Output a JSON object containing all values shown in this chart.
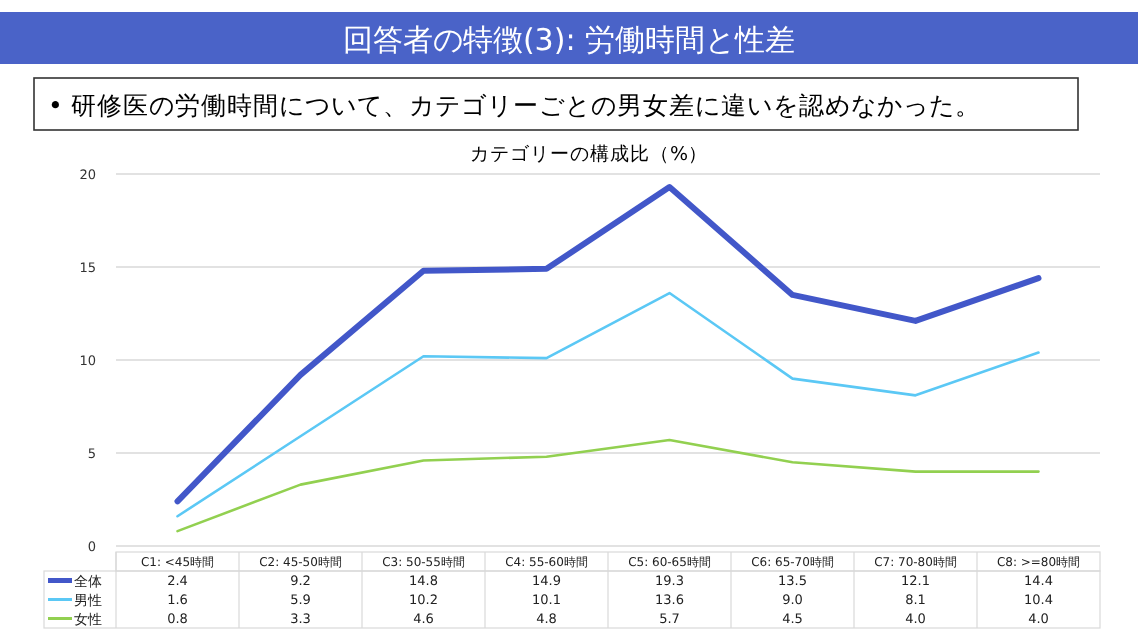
{
  "chart_data": {
    "type": "line",
    "title": "回答者の特徴(3): 労働時間と性差",
    "subtitle": "• 研修医の労働時間について、カテゴリーごとの男女差に違いを認めなかった。",
    "annotations": [
      "カテゴリーの構成比（%）"
    ],
    "categories": [
      "C1: <45時間",
      "C2: 45-50時間",
      "C3: 50-55時間",
      "C4: 55-60時間",
      "C5: 60-65時間",
      "C6: 65-70時間",
      "C7: 70-80時間",
      "C8: >=80時間"
    ],
    "series": [
      {
        "name": "全体",
        "color": "#4257c9",
        "values": [
          2.4,
          9.2,
          14.8,
          14.9,
          19.3,
          13.5,
          12.1,
          14.4
        ],
        "value_labels": [
          "2.4",
          "9.2",
          "14.8",
          "14.9",
          "19.3",
          "13.5",
          "12.1",
          "14.4"
        ]
      },
      {
        "name": "男性",
        "color": "#5bc8f5",
        "values": [
          1.6,
          5.9,
          10.2,
          10.1,
          13.6,
          9.0,
          8.1,
          10.4
        ],
        "value_labels": [
          "1.6",
          "5.9",
          "10.2",
          "10.1",
          "13.6",
          "9.0",
          "8.1",
          "10.4"
        ]
      },
      {
        "name": "女性",
        "color": "#92d050",
        "values": [
          0.8,
          3.3,
          4.6,
          4.8,
          5.7,
          4.5,
          4.0,
          4.0
        ],
        "value_labels": [
          "0.8",
          "3.3",
          "4.6",
          "4.8",
          "5.7",
          "4.5",
          "4.0",
          "4.0"
        ]
      }
    ],
    "ylim": [
      0,
      20
    ],
    "yticks": [
      0,
      5,
      10,
      15,
      20
    ],
    "grid": "y",
    "legend": "bottom"
  }
}
